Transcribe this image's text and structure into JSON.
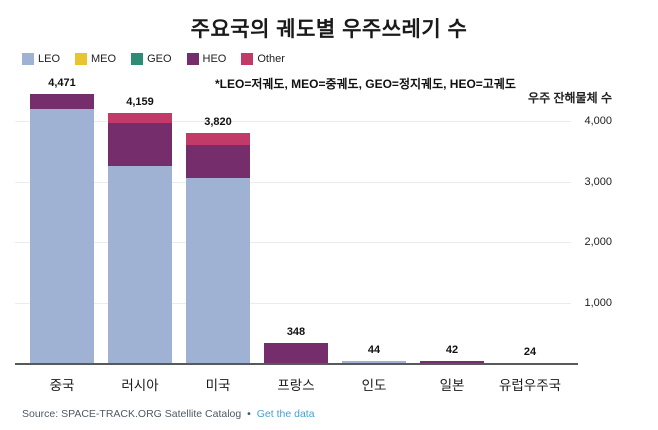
{
  "title": "주요국의 궤도별 우주쓰레기 수",
  "note": "*LEO=저궤도, MEO=중궤도, GEO=정지궤도, HEO=고궤도",
  "source": {
    "prefix": "Source: SPACE-TRACK.ORG Satellite Catalog",
    "separator": "•",
    "link_label": "Get the data"
  },
  "colors": {
    "leo": "#9fb2d4",
    "meo": "#e9c431",
    "geo": "#2e8b76",
    "heo": "#762d6c",
    "other": "#c23a68",
    "grid": "#ececec",
    "axis": "#58595b",
    "link": "#45a0d5"
  },
  "legend": {
    "items": [
      {
        "label": "LEO",
        "color": "#9fb2d4"
      },
      {
        "label": "MEO",
        "color": "#e9c431"
      },
      {
        "label": "GEO",
        "color": "#2e8b76"
      },
      {
        "label": "HEO",
        "color": "#762d6c"
      },
      {
        "label": "Other",
        "color": "#c23a68"
      }
    ]
  },
  "chart_data": {
    "type": "bar",
    "stacked": true,
    "title": "주요국의 궤도별 우주쓰레기 수",
    "ylabel": "우주 잔해물체 수",
    "categories": [
      "중국",
      "러시아",
      "미국",
      "프랑스",
      "인도",
      "일본",
      "유럽우주국"
    ],
    "totals": [
      4471,
      4159,
      3820,
      348,
      44,
      42,
      24
    ],
    "total_labels": [
      "4,471",
      "4,159",
      "3,820",
      "348",
      "44",
      "42",
      "24"
    ],
    "series": [
      {
        "name": "LEO",
        "color": "#9fb2d4",
        "values": [
          4225,
          3280,
          3070,
          0,
          44,
          0,
          24
        ]
      },
      {
        "name": "MEO",
        "color": "#e9c431",
        "values": [
          0,
          0,
          0,
          0,
          0,
          0,
          0
        ]
      },
      {
        "name": "GEO",
        "color": "#2e8b76",
        "values": [
          0,
          0,
          0,
          0,
          0,
          0,
          0
        ]
      },
      {
        "name": "HEO",
        "color": "#762d6c",
        "values": [
          246,
          715,
          555,
          348,
          0,
          42,
          0
        ]
      },
      {
        "name": "Other",
        "color": "#c23a68",
        "values": [
          0,
          164,
          195,
          0,
          0,
          0,
          0
        ]
      }
    ],
    "yticks": [
      1000,
      2000,
      3000,
      4000
    ],
    "ytick_labels": [
      "1,000",
      "2,000",
      "3,000",
      "4,000"
    ],
    "ylim": [
      0,
      4500
    ],
    "grid": true,
    "legend_position": "top-left"
  }
}
